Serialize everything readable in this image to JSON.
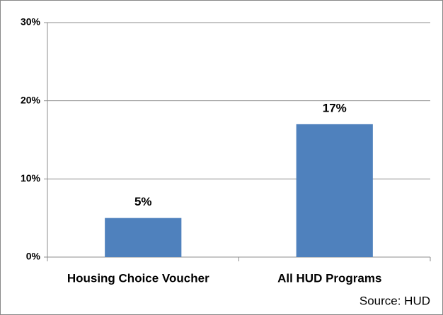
{
  "chart_data": {
    "type": "bar",
    "categories": [
      "Housing Choice Voucher",
      "All HUD Programs"
    ],
    "values": [
      5,
      17
    ],
    "value_labels": [
      "5%",
      "17%"
    ],
    "color": "#4f81bd",
    "ylim": [
      0,
      30
    ],
    "yticks": [
      {
        "value": 0,
        "label": "0%"
      },
      {
        "value": 10,
        "label": "10%"
      },
      {
        "value": 20,
        "label": "20%"
      },
      {
        "value": 30,
        "label": "30%"
      }
    ],
    "grid": true,
    "annotation": "Source: HUD"
  }
}
